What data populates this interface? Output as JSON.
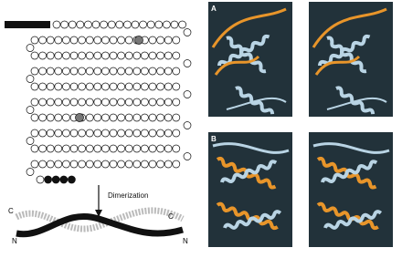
{
  "figure": {
    "sequence_panel": {
      "arrow_label": "Dimerization",
      "termini": [
        "C",
        "N",
        "C",
        "N"
      ]
    },
    "structure_panels": {
      "labels": [
        "A",
        "B"
      ]
    }
  }
}
